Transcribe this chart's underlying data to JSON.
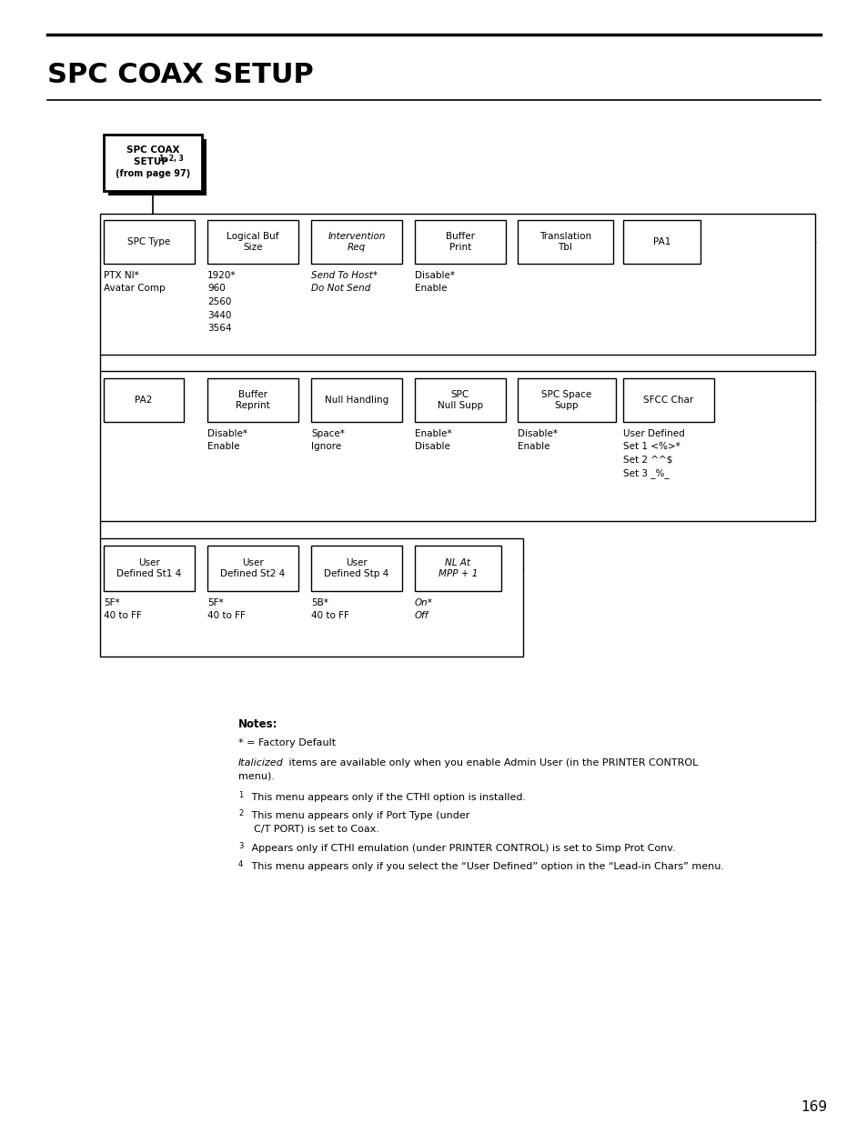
{
  "title": "SPC COAX SETUP",
  "page_number": "169",
  "bg_color": "#ffffff",
  "row1_boxes": [
    {
      "label": "SPC Type",
      "italic": false
    },
    {
      "label": "Logical Buf\nSize",
      "italic": false
    },
    {
      "label": "Intervention\nReq",
      "italic": true
    },
    {
      "label": "Buffer\nPrint",
      "italic": false
    },
    {
      "label": "Translation\nTbl",
      "italic": false
    },
    {
      "label": "PA1",
      "italic": false
    }
  ],
  "row1_vals": [
    [
      "PTX NI*",
      "Avatar Comp"
    ],
    [
      "1920*",
      "960",
      "2560",
      "3440",
      "3564"
    ],
    [
      "Send To Host*",
      "Do Not Send"
    ],
    [
      "Disable*",
      "Enable"
    ],
    [],
    []
  ],
  "row1_vals_italic": [
    false,
    false,
    true,
    false,
    false,
    false
  ],
  "row2_boxes": [
    {
      "label": "PA2",
      "italic": false
    },
    {
      "label": "Buffer\nReprint",
      "italic": false
    },
    {
      "label": "Null Handling",
      "italic": false
    },
    {
      "label": "SPC\nNull Supp",
      "italic": false
    },
    {
      "label": "SPC Space\nSupp",
      "italic": false
    },
    {
      "label": "SFCC Char",
      "italic": false
    }
  ],
  "row2_vals": [
    [],
    [
      "Disable*",
      "Enable"
    ],
    [
      "Space*",
      "Ignore"
    ],
    [
      "Enable*",
      "Disable"
    ],
    [
      "Disable*",
      "Enable"
    ],
    [
      "User Defined",
      "Set 1 <%>*",
      "Set 2 ^^$",
      "Set 3 _%_"
    ]
  ],
  "row3_boxes": [
    {
      "label": "User\nDefined St1 4",
      "italic": false
    },
    {
      "label": "User\nDefined St2 4",
      "italic": false
    },
    {
      "label": "User\nDefined Stp 4",
      "italic": false
    },
    {
      "label": "NL At\nMPP + 1",
      "italic": true
    }
  ],
  "row3_vals": [
    [
      "5F*",
      "40 to FF"
    ],
    [
      "5F*",
      "40 to FF"
    ],
    [
      "5B*",
      "40 to FF"
    ],
    [
      "On*",
      "Off"
    ]
  ],
  "row3_vals_italic": [
    false,
    false,
    false,
    true
  ]
}
